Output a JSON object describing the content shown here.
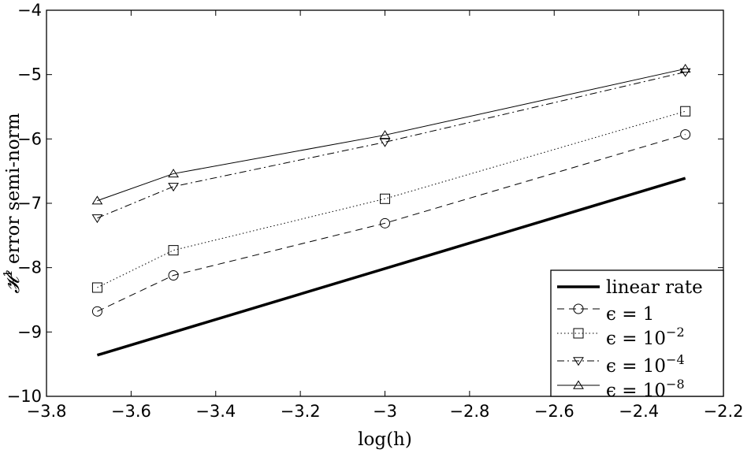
{
  "chart_data": {
    "type": "line",
    "xlabel": "log(h)",
    "ylabel_math": "𝓗",
    "ylabel_sup": "1",
    "ylabel_text": " error semi-norm",
    "xlim": [
      -3.8,
      -2.2
    ],
    "ylim": [
      -10,
      -4
    ],
    "xticks": [
      -3.8,
      -3.6,
      -3.4,
      -3.2,
      -3.0,
      -2.8,
      -2.6,
      -2.4,
      -2.2
    ],
    "xtick_labels": [
      "−3.8",
      "−3.6",
      "−3.4",
      "−3.2",
      "−3",
      "−2.8",
      "−2.6",
      "−2.4",
      "−2.2"
    ],
    "yticks": [
      -10,
      -9,
      -8,
      -7,
      -6,
      -5,
      -4
    ],
    "ytick_labels": [
      "−10",
      "−9",
      "−8",
      "−7",
      "−6",
      "−5",
      "−4"
    ],
    "grid": false,
    "legend_position": "bottom-right",
    "series": [
      {
        "name": "linear rate",
        "legend_base": "linear rate",
        "legend_sup": "",
        "style": "solid",
        "marker": "none",
        "width": 3.5,
        "x": [
          -3.68,
          -2.29
        ],
        "y": [
          -9.36,
          -6.61
        ]
      },
      {
        "name": "ϵ = 1",
        "legend_base": "ϵ = 1",
        "legend_sup": "",
        "style": "dashed",
        "marker": "circle",
        "width": 1,
        "x": [
          -3.68,
          -3.5,
          -3.0,
          -2.29
        ],
        "y": [
          -8.68,
          -8.12,
          -7.31,
          -5.93
        ]
      },
      {
        "name": "ϵ = 10−2",
        "legend_base": "ϵ = 10",
        "legend_sup": "−2",
        "style": "dotted",
        "marker": "square",
        "width": 1,
        "x": [
          -3.68,
          -3.5,
          -3.0,
          -2.29
        ],
        "y": [
          -8.31,
          -7.73,
          -6.93,
          -5.57
        ]
      },
      {
        "name": "ϵ = 10−4",
        "legend_base": "ϵ = 10",
        "legend_sup": "−4",
        "style": "dashdot",
        "marker": "triangle-down",
        "width": 1,
        "x": [
          -3.68,
          -3.5,
          -3.0,
          -2.29
        ],
        "y": [
          -7.23,
          -6.74,
          -6.05,
          -4.96
        ]
      },
      {
        "name": "ϵ = 10−8",
        "legend_base": "ϵ = 10",
        "legend_sup": "−8",
        "style": "solid",
        "marker": "triangle-up",
        "width": 1,
        "x": [
          -3.68,
          -3.5,
          -3.0,
          -2.29
        ],
        "y": [
          -6.96,
          -6.54,
          -5.94,
          -4.91
        ]
      }
    ]
  }
}
